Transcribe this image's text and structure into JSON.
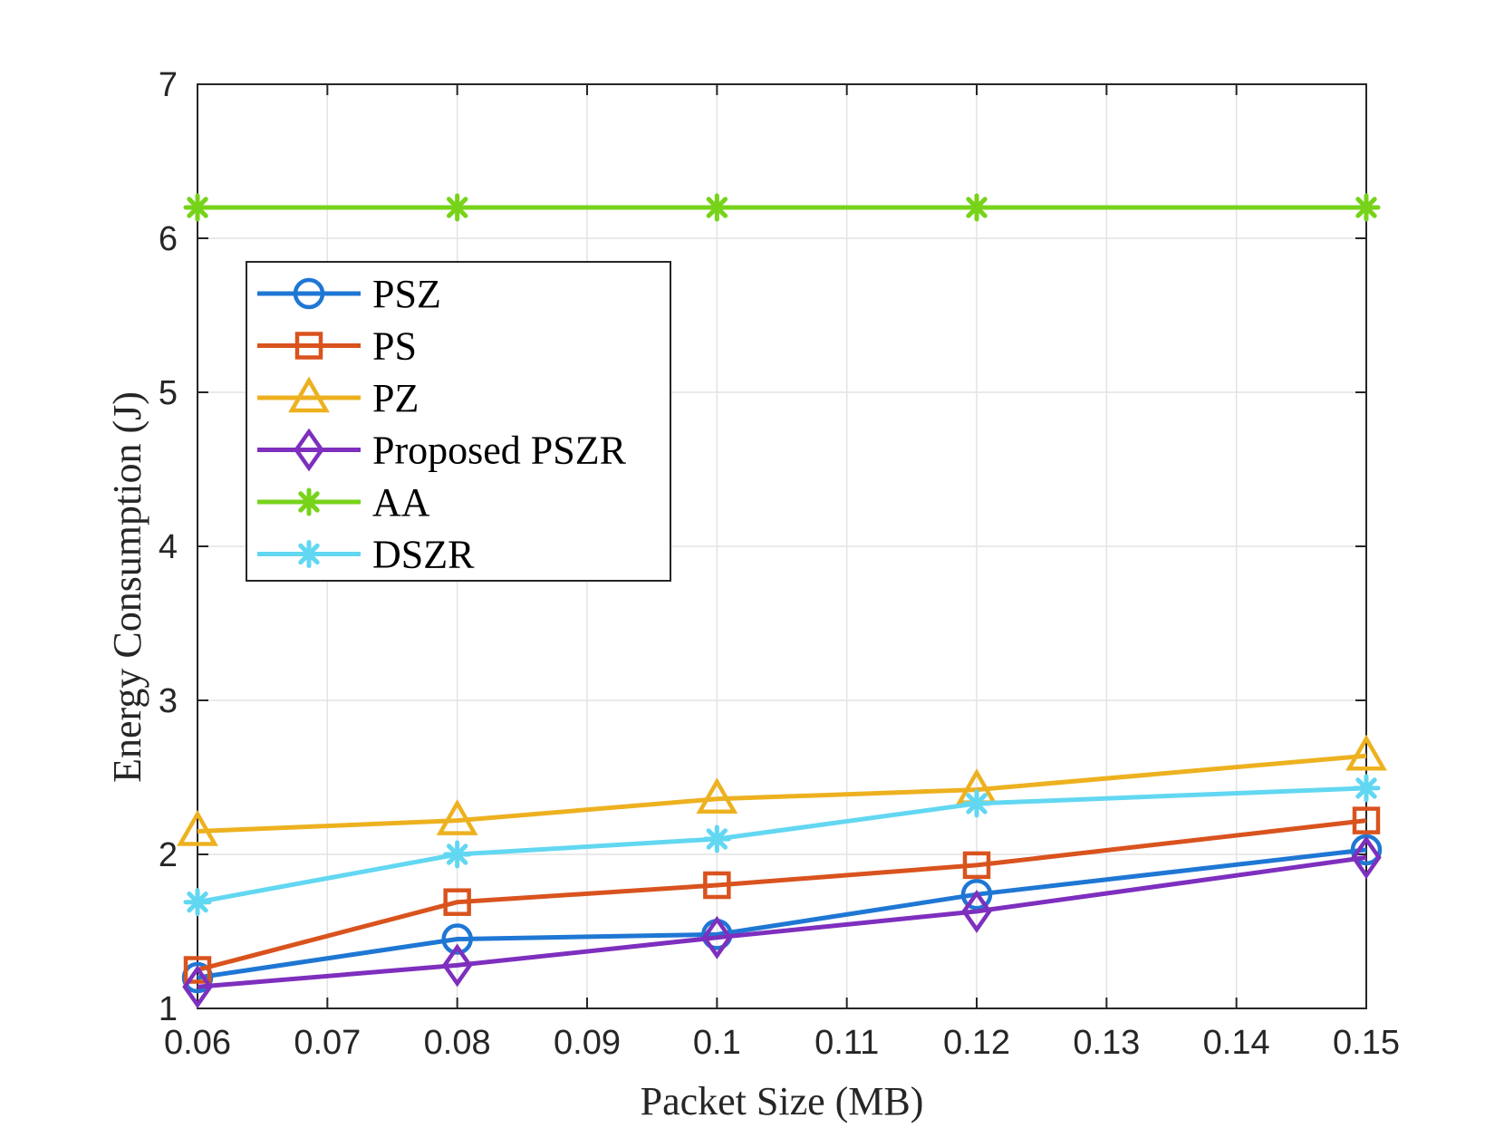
{
  "chart_data": {
    "type": "line",
    "title": "",
    "xlabel": "Packet Size (MB)",
    "ylabel": "Energy Consumption (J)",
    "xlim": [
      0.06,
      0.15
    ],
    "ylim": [
      1,
      7
    ],
    "grid": true,
    "legend_position": "upper-left",
    "x": [
      0.06,
      0.08,
      0.1,
      0.12,
      0.15
    ],
    "xticks": [
      0.06,
      0.07,
      0.08,
      0.09,
      0.1,
      0.11,
      0.12,
      0.13,
      0.14,
      0.15
    ],
    "xtick_labels": [
      "0.06",
      "0.07",
      "0.08",
      "0.09",
      "0.1",
      "0.11",
      "0.12",
      "0.13",
      "0.14",
      "0.15"
    ],
    "yticks": [
      1,
      2,
      3,
      4,
      5,
      6,
      7
    ],
    "ytick_labels": [
      "1",
      "2",
      "3",
      "4",
      "5",
      "6",
      "7"
    ],
    "series": [
      {
        "name": "PSZ",
        "marker": "circle",
        "color": "#1f77d4",
        "values": [
          1.2,
          1.45,
          1.48,
          1.74,
          2.03
        ]
      },
      {
        "name": "PS",
        "marker": "square",
        "color": "#d9531e",
        "values": [
          1.25,
          1.69,
          1.8,
          1.93,
          2.22
        ]
      },
      {
        "name": "PZ",
        "marker": "triangle",
        "color": "#edb120",
        "values": [
          2.15,
          2.22,
          2.36,
          2.42,
          2.64
        ]
      },
      {
        "name": "Proposed PSZR",
        "marker": "diamond",
        "color": "#7e2fbe",
        "values": [
          1.14,
          1.28,
          1.46,
          1.63,
          1.98
        ]
      },
      {
        "name": "AA",
        "marker": "asterisk",
        "color": "#77d31a",
        "values": [
          6.2,
          6.2,
          6.2,
          6.2,
          6.2
        ]
      },
      {
        "name": "DSZR",
        "marker": "asterisk",
        "color": "#62d7f2",
        "values": [
          1.69,
          2.0,
          2.1,
          2.33,
          2.43
        ]
      }
    ]
  }
}
